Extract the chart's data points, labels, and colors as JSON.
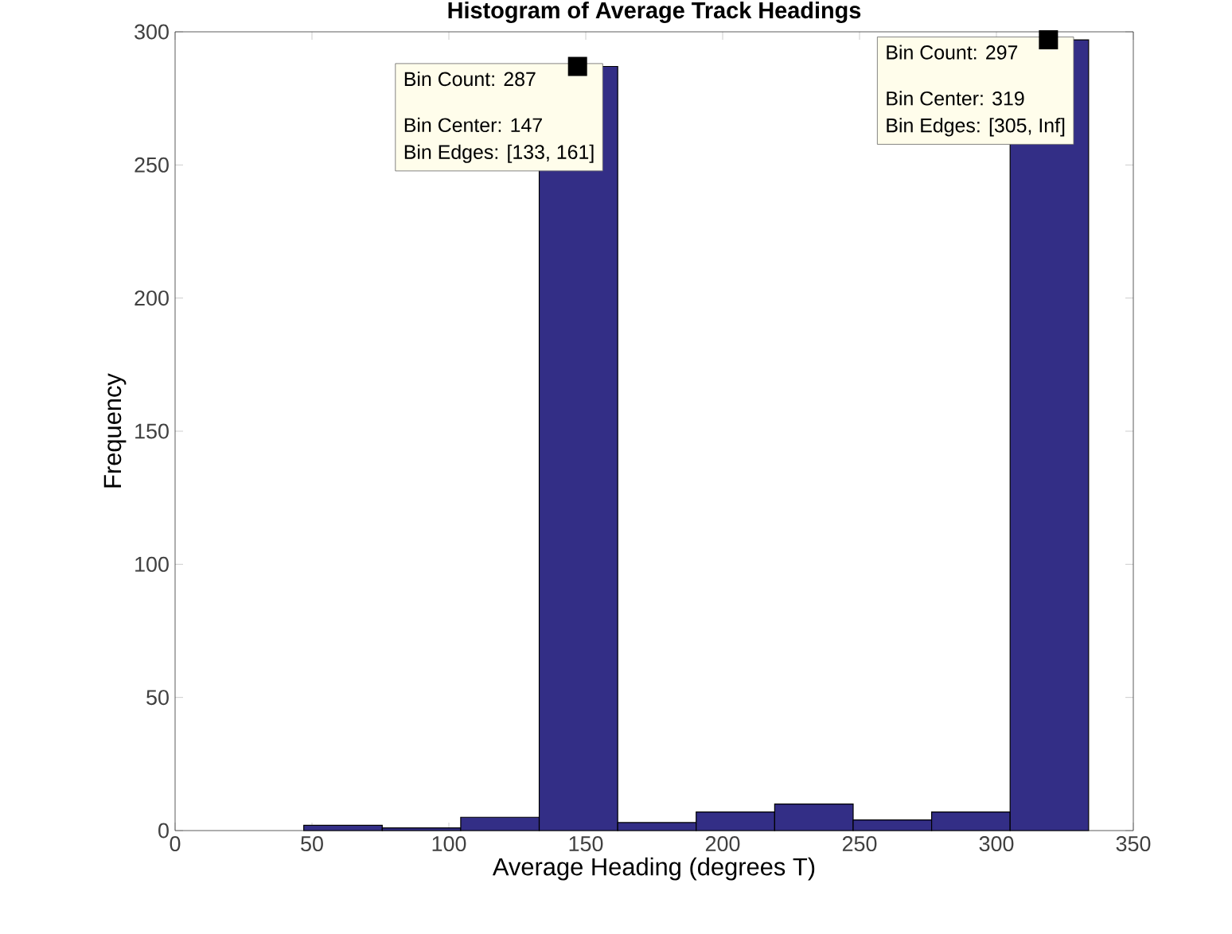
{
  "chart_data": {
    "type": "histogram",
    "title": "Histogram of Average Track Headings",
    "xlabel": "Average Heading (degrees T)",
    "ylabel": "Frequency",
    "bins": [
      47,
      75.67,
      104.33,
      133,
      161.67,
      190.33,
      219,
      247.67,
      276.33,
      305,
      333.67
    ],
    "values": [
      2,
      1,
      5,
      287,
      3,
      7,
      10,
      4,
      7,
      297
    ],
    "color": "#332e86",
    "xlim": [
      0,
      350
    ],
    "ylim": [
      0,
      300
    ],
    "xticks": [
      0,
      50,
      100,
      150,
      200,
      250,
      300,
      350
    ],
    "yticks": [
      0,
      50,
      100,
      150,
      200,
      250,
      300
    ],
    "grid": false,
    "annotations": [
      {
        "text": "Bin Count: 287",
        "x": 147,
        "y": 287
      },
      "Bin Center: 147",
      "Bin Edges: [133, 161]",
      {
        "text": "Bin Count: 297",
        "x": 319,
        "y": 297
      },
      "Bin Center: 319",
      "Bin Edges: [305, Inf]"
    ]
  }
}
